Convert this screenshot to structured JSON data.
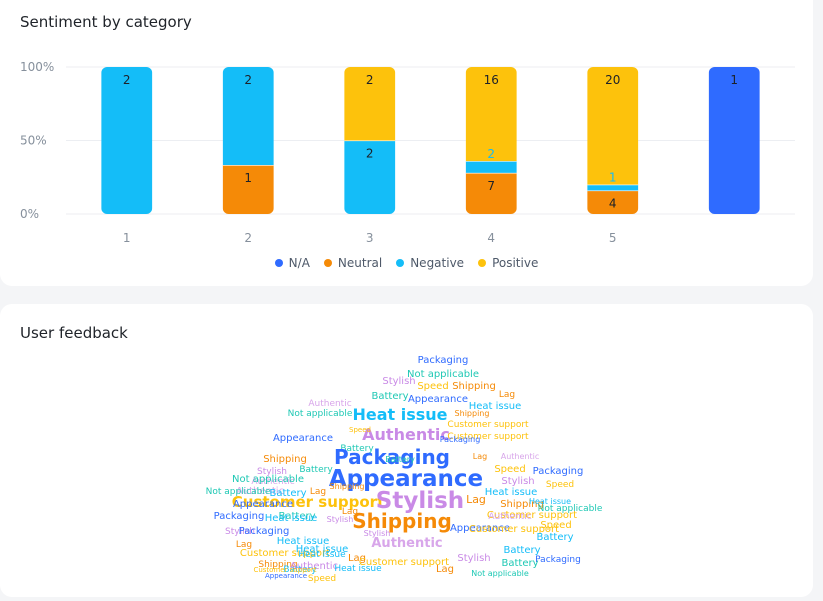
{
  "colors": {
    "na": "#2f6bff",
    "neutral": "#f58a07",
    "negative": "#14bdf8",
    "positive": "#fdc20c",
    "grid": "#eceef2",
    "axis_text": "#86909c",
    "authentic": "#d8a6ea"
  },
  "chart_card": {
    "title": "Sentiment by category"
  },
  "chart_data": {
    "type": "bar",
    "stacked": true,
    "normalized": true,
    "title": "Sentiment by category",
    "categories": [
      "1",
      "2",
      "3",
      "4",
      "5",
      ""
    ],
    "y_ticks": [
      "100%",
      "50%",
      "0%"
    ],
    "ylim": [
      0,
      100
    ],
    "series": [
      {
        "name": "N/A",
        "color_key": "na",
        "counts": [
          0,
          0,
          0,
          0,
          0,
          1
        ]
      },
      {
        "name": "Neutral",
        "color_key": "neutral",
        "counts": [
          0,
          1,
          0,
          7,
          4,
          0
        ]
      },
      {
        "name": "Negative",
        "color_key": "negative",
        "counts": [
          2,
          2,
          2,
          2,
          1,
          0
        ]
      },
      {
        "name": "Positive",
        "color_key": "positive",
        "counts": [
          0,
          0,
          2,
          16,
          20,
          0
        ]
      }
    ],
    "legend_position": "bottom"
  },
  "legend": [
    {
      "label": "N/A",
      "color_key": "na"
    },
    {
      "label": "Neutral",
      "color_key": "neutral"
    },
    {
      "label": "Negative",
      "color_key": "negative"
    },
    {
      "label": "Positive",
      "color_key": "positive"
    }
  ],
  "cloud_card": {
    "title": "User feedback"
  },
  "word_cloud": [
    {
      "t": "Packaging",
      "c": "#2f6bff"
    },
    {
      "t": "Not applicable",
      "c": "#1ec8b4"
    },
    {
      "t": "Stylish",
      "c": "#c98ae6"
    },
    {
      "t": "Speed",
      "c": "#fdc20c"
    },
    {
      "t": "Shipping",
      "c": "#f58a07"
    },
    {
      "t": "Battery",
      "c": "#1ec8b4"
    },
    {
      "t": "Appearance",
      "c": "#2f6bff"
    },
    {
      "t": "Lag",
      "c": "#f58a07"
    },
    {
      "t": "Authentic",
      "c": "#d8a6ea"
    },
    {
      "t": "Heat issue",
      "c": "#14bdf8"
    },
    {
      "t": "Not applicable",
      "c": "#1ec8b4"
    },
    {
      "t": "Heat issue",
      "c": "#14bdf8"
    },
    {
      "t": "Shipping",
      "c": "#f58a07"
    },
    {
      "t": "Customer support",
      "c": "#fdc20c"
    },
    {
      "t": "Appearance",
      "c": "#2f6bff"
    },
    {
      "t": "Authentic",
      "c": "#c98ae6"
    },
    {
      "t": "Customer support",
      "c": "#fdc20c"
    },
    {
      "t": "Battery",
      "c": "#1ec8b4"
    },
    {
      "t": "Packaging",
      "c": "#2f6bff"
    },
    {
      "t": "Shipping",
      "c": "#f58a07"
    },
    {
      "t": "Stylish",
      "c": "#c98ae6"
    },
    {
      "t": "Authentic",
      "c": "#d8a6ea"
    },
    {
      "t": "Speed",
      "c": "#fdc20c"
    },
    {
      "t": "Packaging",
      "c": "#2f6bff"
    },
    {
      "t": "Appearance",
      "c": "#2f6bff"
    },
    {
      "t": "Not applicable",
      "c": "#1ec8b4"
    },
    {
      "t": "Customer support",
      "c": "#fdc20c"
    },
    {
      "t": "Stylish",
      "c": "#c98ae6"
    },
    {
      "t": "Battery",
      "c": "#1ec8b4"
    },
    {
      "t": "Lag",
      "c": "#f58a07"
    },
    {
      "t": "Heat issue",
      "c": "#14bdf8"
    },
    {
      "t": "Authentic",
      "c": "#d8a6ea"
    },
    {
      "t": "Battery",
      "c": "#14bdf8"
    },
    {
      "t": "Speed",
      "c": "#fdc20c"
    },
    {
      "t": "Lag",
      "c": "#f58a07"
    },
    {
      "t": "Not applicable",
      "c": "#1ec8b4"
    },
    {
      "t": "Shipping",
      "c": "#f58a07"
    },
    {
      "t": "Appearance",
      "c": "#2f6bff"
    },
    {
      "t": "Stylish",
      "c": "#c98ae6"
    },
    {
      "t": "Customer support",
      "c": "#fdc20c"
    },
    {
      "t": "Battery",
      "c": "#1ec8b4"
    },
    {
      "t": "Packaging",
      "c": "#2f6bff"
    },
    {
      "t": "Heat issue",
      "c": "#14bdf8"
    },
    {
      "t": "Authentic",
      "c": "#d8a6ea"
    },
    {
      "t": "Speed",
      "c": "#fdc20c"
    },
    {
      "t": "Not applicable",
      "c": "#1ec8b4"
    },
    {
      "t": "Lag",
      "c": "#f58a07"
    },
    {
      "t": "Shipping",
      "c": "#f58a07"
    },
    {
      "t": "Appearance",
      "c": "#2f6bff"
    },
    {
      "t": "Customer support",
      "c": "#fdc20c"
    },
    {
      "t": "Stylish",
      "c": "#c98ae6"
    },
    {
      "t": "Battery",
      "c": "#14bdf8"
    },
    {
      "t": "Packaging",
      "c": "#2f6bff"
    },
    {
      "t": "Heat issue",
      "c": "#14bdf8"
    },
    {
      "t": "Lag",
      "c": "#f58a07"
    },
    {
      "t": "Customer support",
      "c": "#fdc20c"
    },
    {
      "t": "Authentic",
      "c": "#d8a6ea"
    },
    {
      "t": "Battery",
      "c": "#14bdf8"
    },
    {
      "t": "Shipping",
      "c": "#f58a07"
    },
    {
      "t": "Battery",
      "c": "#14bdf8"
    },
    {
      "t": "Heat issue",
      "c": "#14bdf8"
    },
    {
      "t": "Stylish",
      "c": "#c98ae6"
    },
    {
      "t": "Packaging",
      "c": "#2f6bff"
    },
    {
      "t": "Lag",
      "c": "#f58a07"
    },
    {
      "t": "Customer support",
      "c": "#fdc20c"
    },
    {
      "t": "Authentic",
      "c": "#c98ae6"
    },
    {
      "t": "Battery",
      "c": "#1ec8b4"
    },
    {
      "t": "Heat issue",
      "c": "#14bdf8"
    },
    {
      "t": "Lag",
      "c": "#f58a07"
    },
    {
      "t": "Customer support",
      "c": "#fdc20c"
    },
    {
      "t": "Heat issue",
      "c": "#14bdf8"
    },
    {
      "t": "Not applicable",
      "c": "#1ec8b4"
    },
    {
      "t": "Speed",
      "c": "#fdc20c"
    },
    {
      "t": "Appearance",
      "c": "#2f6bff"
    },
    {
      "t": "Stylish",
      "c": "#c98ae6"
    },
    {
      "t": "Shipping",
      "c": "#f58a07"
    },
    {
      "t": "Battery",
      "c": "#1ec8b4"
    },
    {
      "t": "Packaging",
      "c": "#2f6bff"
    },
    {
      "t": "Lag",
      "c": "#f58a07"
    },
    {
      "t": "Authentic",
      "c": "#d8a6ea"
    },
    {
      "t": "Speed",
      "c": "#fdc20c"
    },
    {
      "t": "Stylish",
      "c": "#c98ae6"
    },
    {
      "t": "Heat issue",
      "c": "#14bdf8"
    }
  ]
}
